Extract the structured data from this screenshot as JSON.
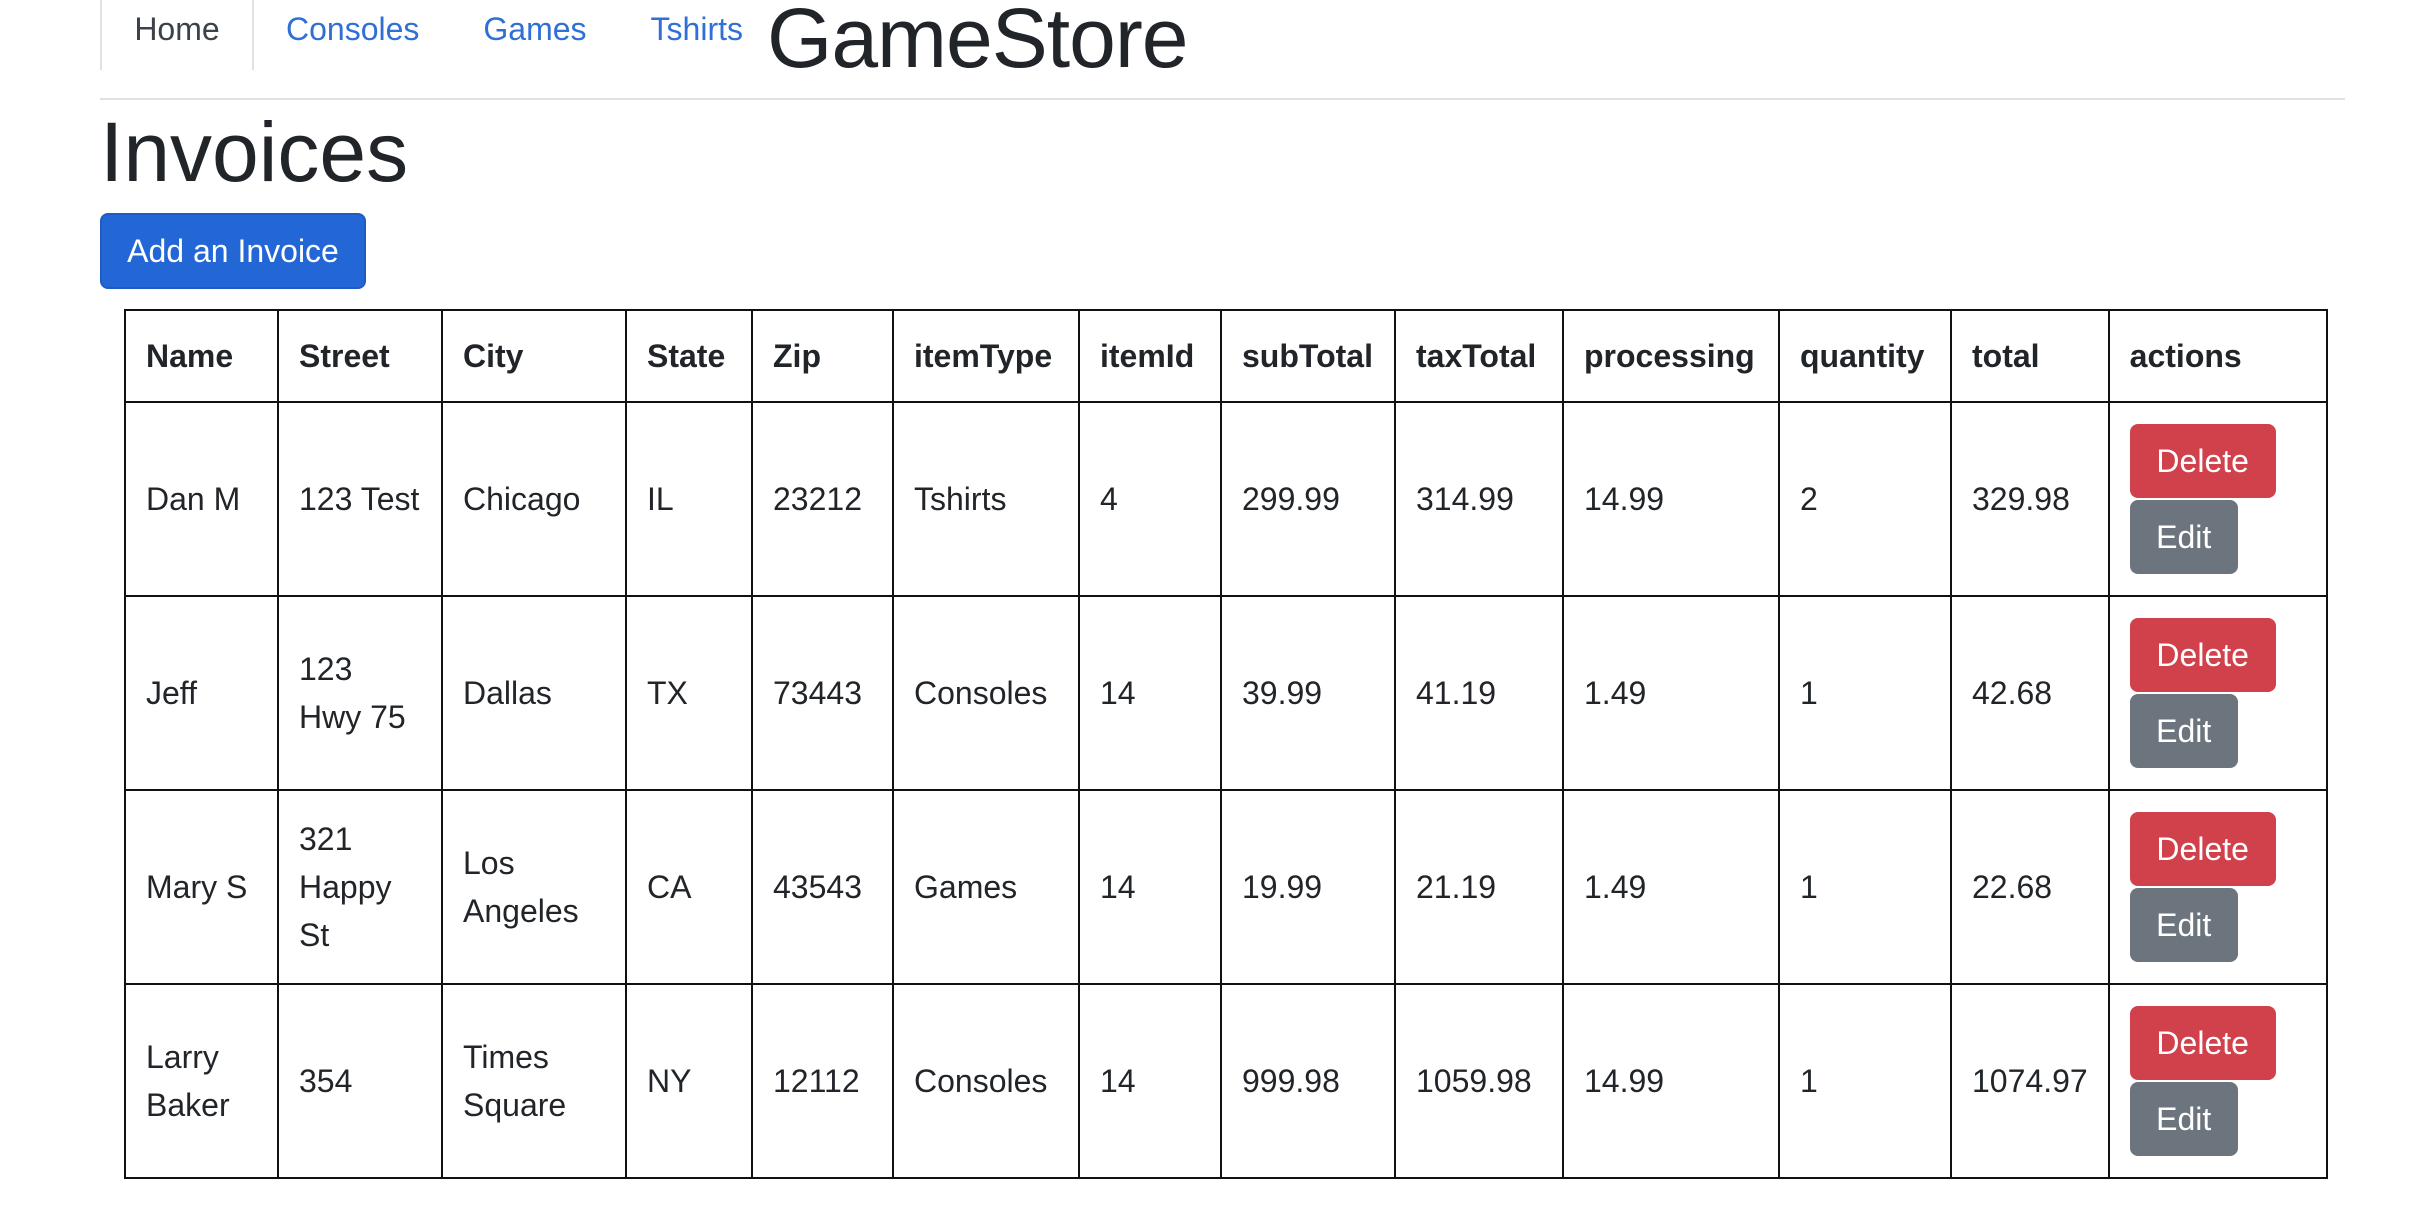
{
  "nav": {
    "tabs": [
      {
        "label": "Home"
      },
      {
        "label": "Consoles"
      },
      {
        "label": "Games"
      },
      {
        "label": "Tshirts"
      }
    ],
    "brand": "GameStore"
  },
  "page": {
    "title": "Invoices",
    "add_button_label": "Add an Invoice"
  },
  "table": {
    "columns": [
      "Name",
      "Street",
      "City",
      "State",
      "Zip",
      "itemType",
      "itemId",
      "subTotal",
      "taxTotal",
      "processing",
      "quantity",
      "total",
      "actions"
    ],
    "rows": [
      {
        "name": "Dan M",
        "street": "123 Test",
        "city": "Chicago",
        "state": "IL",
        "zip": "23212",
        "itemType": "Tshirts",
        "itemId": "4",
        "subTotal": "299.99",
        "taxTotal": "314.99",
        "processing": "14.99",
        "quantity": "2",
        "total": "329.98"
      },
      {
        "name": "Jeff",
        "street": "123 Hwy 75",
        "city": "Dallas",
        "state": "TX",
        "zip": "73443",
        "itemType": "Consoles",
        "itemId": "14",
        "subTotal": "39.99",
        "taxTotal": "41.19",
        "processing": "1.49",
        "quantity": "1",
        "total": "42.68"
      },
      {
        "name": "Mary S",
        "street": "321 Happy St",
        "city": "Los Angeles",
        "state": "CA",
        "zip": "43543",
        "itemType": "Games",
        "itemId": "14",
        "subTotal": "19.99",
        "taxTotal": "21.19",
        "processing": "1.49",
        "quantity": "1",
        "total": "22.68"
      },
      {
        "name": "Larry Baker",
        "street": "354",
        "city": "Times Square",
        "state": "NY",
        "zip": "12112",
        "itemType": "Consoles",
        "itemId": "14",
        "subTotal": "999.98",
        "taxTotal": "1059.98",
        "processing": "14.99",
        "quantity": "1",
        "total": "1074.97"
      }
    ],
    "delete_label": "Delete",
    "edit_label": "Edit"
  },
  "colors": {
    "primary": "#2366d6",
    "danger": "#d0414c",
    "secondary": "#6c757d",
    "link": "#2f6fd6"
  }
}
